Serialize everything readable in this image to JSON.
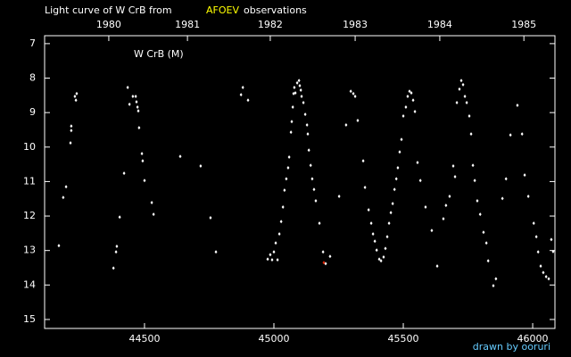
{
  "chart_data": {
    "type": "scatter",
    "title": "Light curve of W CrB from",
    "title_source": "AFOEV",
    "title_suffix": "observations",
    "label": "W CrB (M)",
    "credit": "drawn by ooruri",
    "xlim": [
      44114,
      46086
    ],
    "ylim": [
      6.77,
      15.26
    ],
    "y_inverted": true,
    "xticks": [
      44500,
      45000,
      45500,
      46000
    ],
    "yticks": [
      7,
      8,
      9,
      10,
      11,
      12,
      13,
      14,
      15
    ],
    "x2ticks": [
      {
        "value": 44362,
        "label": "1980"
      },
      {
        "value": 44666,
        "label": "1981"
      },
      {
        "value": 44986,
        "label": "1982"
      },
      {
        "value": 45314,
        "label": "1983"
      },
      {
        "value": 45641,
        "label": "1984"
      },
      {
        "value": 45966,
        "label": "1985"
      }
    ],
    "source_color": "#ffff00",
    "credit_color": "#66ccff",
    "series": [
      {
        "color": "#ffffff",
        "x": [
          44169,
          44186,
          44197,
          44214,
          44217,
          44217,
          44231,
          44235,
          44238,
          44380,
          44390,
          44393,
          44404,
          44421,
          44435,
          44442,
          44455,
          44466,
          44469,
          44473,
          44476,
          44479,
          44490,
          44493,
          44500,
          44528,
          44535,
          44638,
          44717,
          44755,
          44776,
          44873,
          44880,
          44900,
          44976,
          44986,
          44993,
          45000,
          45007,
          45014,
          45021,
          45028,
          45035,
          45041,
          45048,
          45055,
          45059,
          45066,
          45069,
          45073,
          45076,
          45079,
          45083,
          45090,
          45097,
          45100,
          45104,
          45107,
          45114,
          45121,
          45128,
          45131,
          45135,
          45142,
          45148,
          45155,
          45162,
          45176,
          45190,
          45200,
          45217,
          45252,
          45279,
          45297,
          45307,
          45314,
          45324,
          45345,
          45352,
          45366,
          45376,
          45383,
          45390,
          45397,
          45407,
          45414,
          45424,
          45431,
          45438,
          45445,
          45452,
          45459,
          45466,
          45473,
          45479,
          45486,
          45493,
          45500,
          45510,
          45517,
          45524,
          45531,
          45538,
          45545,
          45555,
          45566,
          45586,
          45610,
          45631,
          45655,
          45665,
          45679,
          45693,
          45700,
          45707,
          45717,
          45724,
          45731,
          45738,
          45745,
          45755,
          45762,
          45769,
          45776,
          45786,
          45797,
          45810,
          45821,
          45828,
          45848,
          45858,
          45883,
          45897,
          45914,
          45941,
          45959,
          45969,
          45983,
          46004,
          46014,
          46021,
          46031,
          46041,
          46052,
          46062,
          46072,
          46079
        ],
        "values": [
          12.86,
          11.46,
          11.15,
          9.88,
          9.52,
          9.39,
          8.53,
          8.64,
          8.45,
          13.51,
          13.04,
          12.88,
          12.03,
          10.76,
          8.27,
          8.76,
          8.53,
          8.53,
          8.69,
          8.84,
          8.95,
          9.44,
          10.19,
          10.4,
          10.97,
          11.61,
          11.95,
          10.27,
          10.55,
          12.05,
          13.04,
          8.48,
          8.27,
          8.64,
          13.25,
          13.12,
          13.27,
          13.04,
          12.78,
          13.27,
          12.52,
          12.16,
          11.74,
          11.25,
          10.92,
          10.6,
          10.29,
          9.57,
          9.26,
          8.84,
          8.45,
          8.27,
          8.43,
          8.14,
          8.07,
          8.22,
          8.35,
          8.53,
          8.71,
          9.05,
          9.36,
          9.62,
          10.09,
          10.53,
          10.92,
          11.23,
          11.56,
          12.21,
          13.04,
          13.38,
          13.17,
          11.43,
          9.36,
          8.38,
          8.45,
          8.53,
          9.23,
          10.4,
          11.17,
          11.82,
          12.21,
          12.52,
          12.73,
          12.99,
          13.25,
          13.3,
          13.19,
          12.94,
          12.6,
          12.21,
          11.9,
          11.64,
          11.23,
          10.92,
          10.6,
          10.14,
          9.78,
          9.1,
          8.84,
          8.53,
          8.38,
          8.43,
          8.64,
          8.97,
          10.45,
          10.97,
          11.74,
          12.42,
          13.45,
          12.08,
          11.69,
          11.43,
          10.55,
          10.86,
          8.71,
          8.32,
          8.07,
          8.19,
          8.53,
          8.71,
          9.1,
          9.62,
          10.53,
          10.97,
          11.56,
          11.95,
          12.47,
          12.78,
          13.3,
          14.02,
          13.82,
          11.49,
          10.92,
          9.65,
          8.79,
          9.62,
          10.81,
          11.43,
          12.21,
          12.6,
          13.04,
          13.45,
          13.64,
          13.76,
          13.82,
          12.68,
          13.03
        ]
      },
      {
        "color": "#dd2200",
        "x": [
          45193
        ],
        "values": [
          13.35
        ]
      }
    ]
  }
}
